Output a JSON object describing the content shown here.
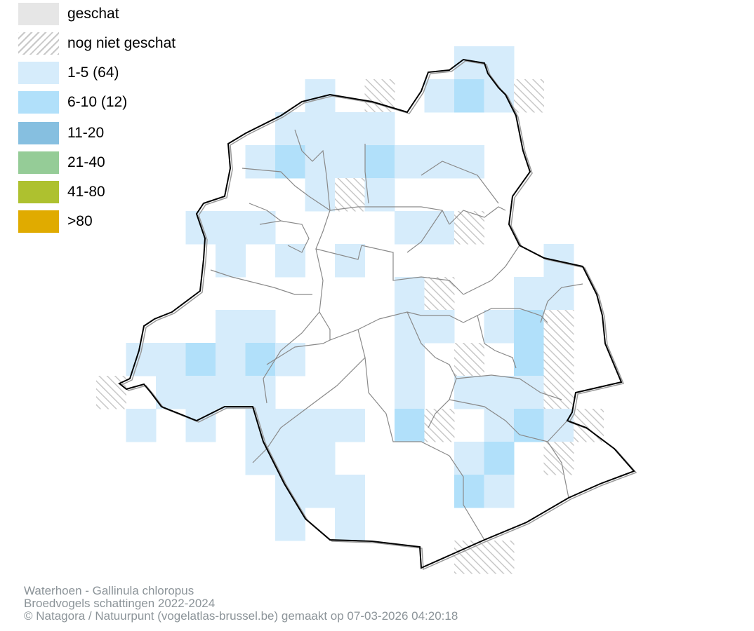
{
  "legend": {
    "items": [
      {
        "label": "geschat",
        "fill": "#e6e6e6",
        "pattern": false
      },
      {
        "label": "nog niet geschat",
        "fill": "#ffffff",
        "pattern": true
      },
      {
        "label": "1-5 (64)",
        "fill": "#d6ecfb",
        "pattern": false
      },
      {
        "label": "6-10 (12)",
        "fill": "#b1e0fa",
        "pattern": false
      },
      {
        "label": "11-20",
        "fill": "#86bfe0",
        "pattern": false
      },
      {
        "label": "21-40",
        "fill": "#95cc97",
        "pattern": false
      },
      {
        "label": "41-80",
        "fill": "#aec12f",
        "pattern": false
      },
      {
        "label": ">80",
        "fill": "#e0ab00",
        "pattern": false
      }
    ]
  },
  "credits": {
    "species": "Waterhoen - Gallinula chloropus",
    "project": "Broedvogels schattingen 2022-2024",
    "copyright": "© Natagora / Natuurpunt (vogelatlas-brussel.be) gemaakt op 07-03-2026 04:20:18"
  },
  "colors": {
    "hatch": "#c8c8c8",
    "boundary": "#000000",
    "municipal_lines": "#8a8a8a"
  }
}
